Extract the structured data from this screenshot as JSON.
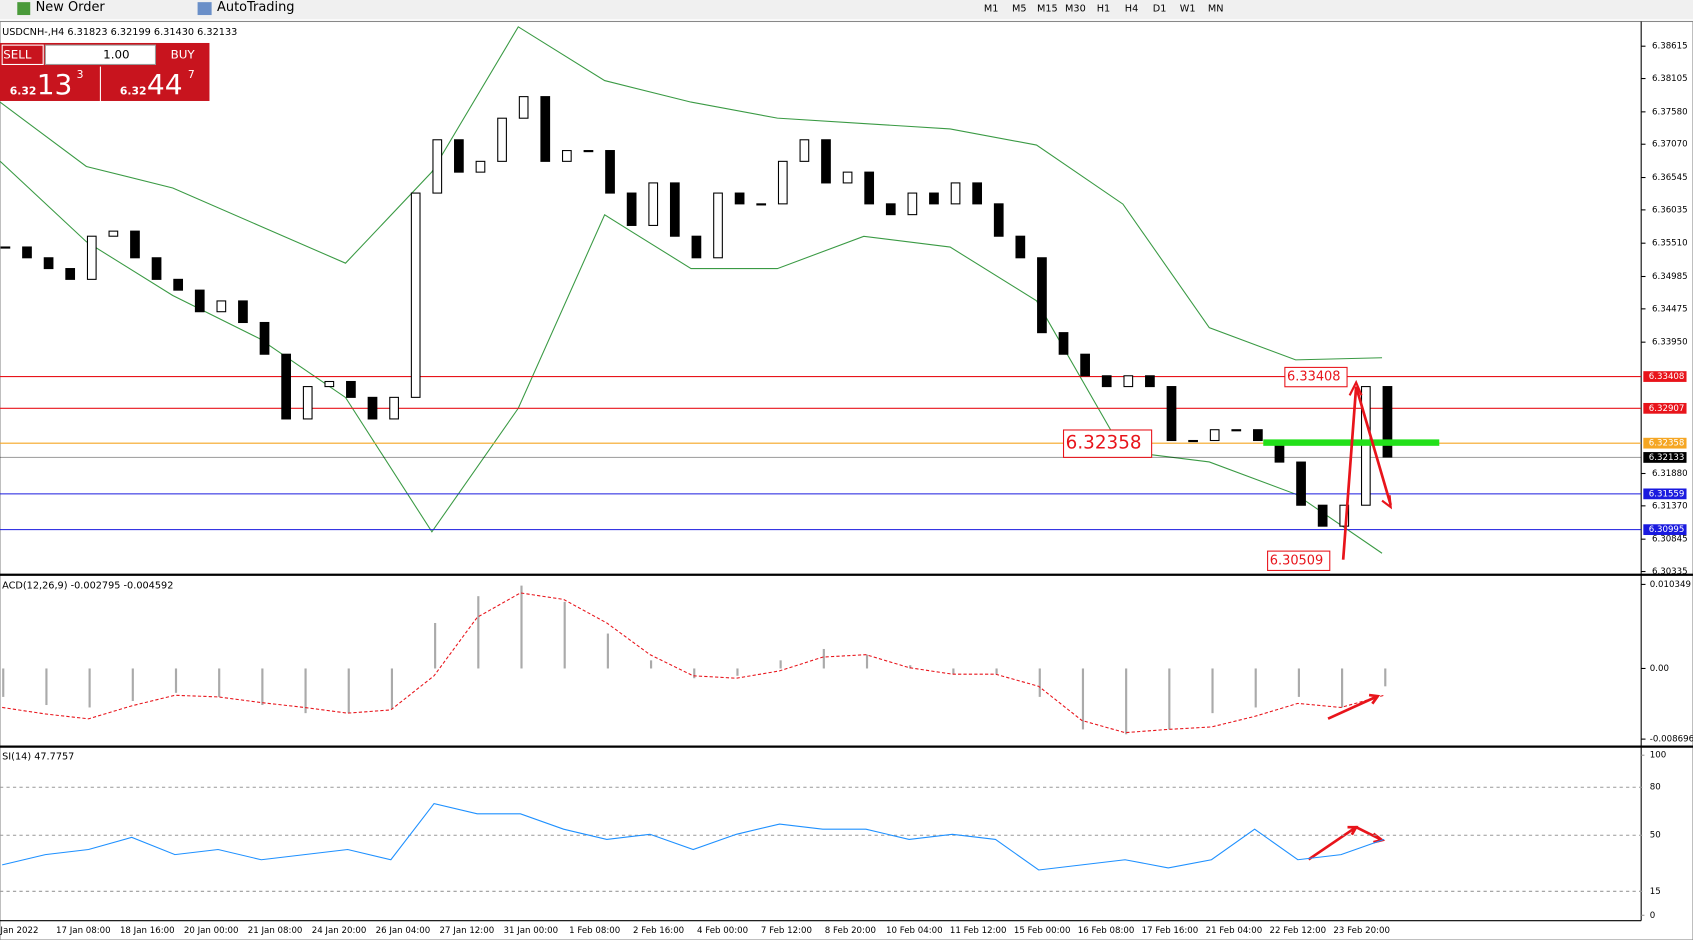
{
  "toolbar": {
    "new_order": "New Order",
    "autotrading": "AutoTrading",
    "timeframes": [
      "M1",
      "M5",
      "M15",
      "M30",
      "H1",
      "H4",
      "D1",
      "W1",
      "MN"
    ]
  },
  "trade_panel": {
    "sell": "SELL",
    "lots": "1.00",
    "buy": "BUY",
    "bid": {
      "small": "6.32",
      "big": "13",
      "pip": "3"
    },
    "ask": {
      "small": "6.32",
      "big": "44",
      "pip": "7"
    }
  },
  "chart": {
    "header": "USDCNH-,H4  6.31823 6.32199 6.31430 6.32133",
    "ylim": [
      6.30335,
      6.38615
    ],
    "yticks": [
      6.38615,
      6.38105,
      {
        "value": 6.3758,
        "label": "6.37580"
      },
      {
        "value": 6.3707,
        "label": "6.37070"
      },
      6.36545,
      6.36035,
      {
        "value": 6.3551,
        "label": "6.35510"
      },
      6.34985,
      6.34475,
      {
        "value": 6.3395,
        "label": "6.33950"
      },
      {
        "value": 6.3188,
        "label": "6.31880"
      },
      {
        "value": 6.3137,
        "label": "6.31370"
      },
      6.30845,
      6.30335
    ],
    "candles_close": [
      6.3545,
      6.3528,
      6.3511,
      6.3494,
      6.3562,
      6.357,
      6.3528,
      6.3494,
      6.3477,
      6.3443,
      6.346,
      6.3426,
      6.3376,
      6.3274,
      6.3325,
      6.3333,
      6.3308,
      6.3274,
      6.3308,
      6.363,
      6.3714,
      6.3663,
      6.368,
      6.3748,
      6.3782,
      6.368,
      6.3697,
      6.3697,
      6.363,
      6.3579,
      6.3646,
      6.3562,
      6.3528,
      6.363,
      6.3613,
      6.3613,
      6.368,
      6.3714,
      6.3646,
      6.3663,
      6.3613,
      6.3596,
      6.363,
      6.3613,
      6.3646,
      6.3613,
      6.3562,
      6.3528,
      6.341,
      6.3376,
      6.3342,
      6.3325,
      6.3342,
      6.3325,
      6.324,
      6.324,
      6.3257,
      6.3257,
      6.324,
      6.3206,
      6.3138,
      6.3105,
      6.3138,
      6.3325,
      6.3214
    ],
    "bollinger_upper": [
      6.37734,
      6.36719,
      6.3638,
      6.35787,
      6.35195,
      6.36634,
      6.3892,
      6.38073,
      6.37734,
      6.37481,
      6.37396,
      6.37311,
      6.37057,
      6.36126,
      6.34179,
      6.33671,
      6.33704
    ],
    "bollinger_lower": [
      6.36803,
      6.35533,
      6.34686,
      6.34009,
      6.33078,
      6.30961,
      6.32908,
      6.35957,
      6.3511,
      6.3511,
      6.35618,
      6.35449,
      6.34602,
      6.32231,
      6.32062,
      6.31554,
      6.30623
    ],
    "band_color": "#3a9a44",
    "levels": [
      {
        "value": 6.33408,
        "color": "#e8141b"
      },
      {
        "value": 6.32907,
        "color": "#e8141b"
      },
      {
        "value": 6.32358,
        "color": "#f5a623"
      },
      {
        "value": 6.32133,
        "color": "#000000"
      },
      {
        "value": 6.31559,
        "color": "#1a1adf"
      },
      {
        "value": 6.30995,
        "color": "#1a1adf"
      }
    ],
    "annotations": [
      6.33408,
      6.32358,
      6.30509
    ],
    "time_labels": [
      "Jan 2022",
      "17 Jan 08:00",
      "18 Jan 16:00",
      "20 Jan 00:00",
      "21 Jan 08:00",
      "24 Jan 20:00",
      "26 Jan 04:00",
      "27 Jan 12:00",
      "31 Jan 00:00",
      "1 Feb 08:00",
      "2 Feb 16:00",
      "4 Feb 00:00",
      "7 Feb 12:00",
      "8 Feb 20:00",
      "10 Feb 04:00",
      "11 Feb 12:00",
      "15 Feb 00:00",
      "16 Feb 08:00",
      "17 Feb 16:00",
      "21 Feb 04:00",
      "22 Feb 12:00",
      "23 Feb 20:00"
    ]
  },
  "macd": {
    "label": "ACD(12,26,9) -0.002795 -0.004592",
    "ylim": [
      -0.008696,
      0.010349
    ],
    "yticks": [
      0.010349,
      {
        "value": 0,
        "label": "0.00"
      },
      -0.008696
    ],
    "histogram": [
      -0.0035,
      -0.0045,
      -0.0048,
      -0.004,
      -0.003,
      -0.0035,
      -0.0045,
      -0.0055,
      -0.0055,
      -0.005,
      0.0056,
      0.0089,
      0.0102,
      0.0082,
      0.0043,
      0.001,
      -0.0012,
      -0.0009,
      0.001,
      0.0024,
      0.0017,
      0.0004,
      -0.0007,
      -0.0007,
      -0.0035,
      -0.0075,
      -0.0081,
      -0.0075,
      -0.0055,
      -0.0048,
      -0.0035,
      -0.0048,
      -0.0022
    ],
    "signal": [
      -0.0048,
      -0.0056,
      -0.0062,
      -0.0046,
      -0.0033,
      -0.0035,
      -0.0042,
      -0.0048,
      -0.0055,
      -0.0051,
      -0.0009,
      0.0063,
      0.0093,
      0.0085,
      0.0056,
      0.0017,
      -0.0009,
      -0.0012,
      -0.0003,
      0.0014,
      0.0017,
      0.0001,
      -0.0007,
      -0.0007,
      -0.0022,
      -0.0064,
      -0.0079,
      -0.0075,
      -0.0072,
      -0.0059,
      -0.0043,
      -0.0048,
      -0.0033
    ]
  },
  "rsi": {
    "label": "SI(14) 47.7757",
    "ylim": [
      0,
      100
    ],
    "yticks": [
      100,
      80,
      50,
      15,
      0
    ],
    "values": [
      31.5,
      37.9,
      41.1,
      48.7,
      37.9,
      41.1,
      34.7,
      37.9,
      41.1,
      34.7,
      69.8,
      63.4,
      63.4,
      53.8,
      47.4,
      50.6,
      41.1,
      50.6,
      57,
      53.8,
      53.8,
      47.4,
      50.6,
      47.4,
      28.3,
      31.5,
      34.7,
      29.6,
      34.7,
      53.8,
      34.7,
      37.9,
      47.4
    ]
  }
}
